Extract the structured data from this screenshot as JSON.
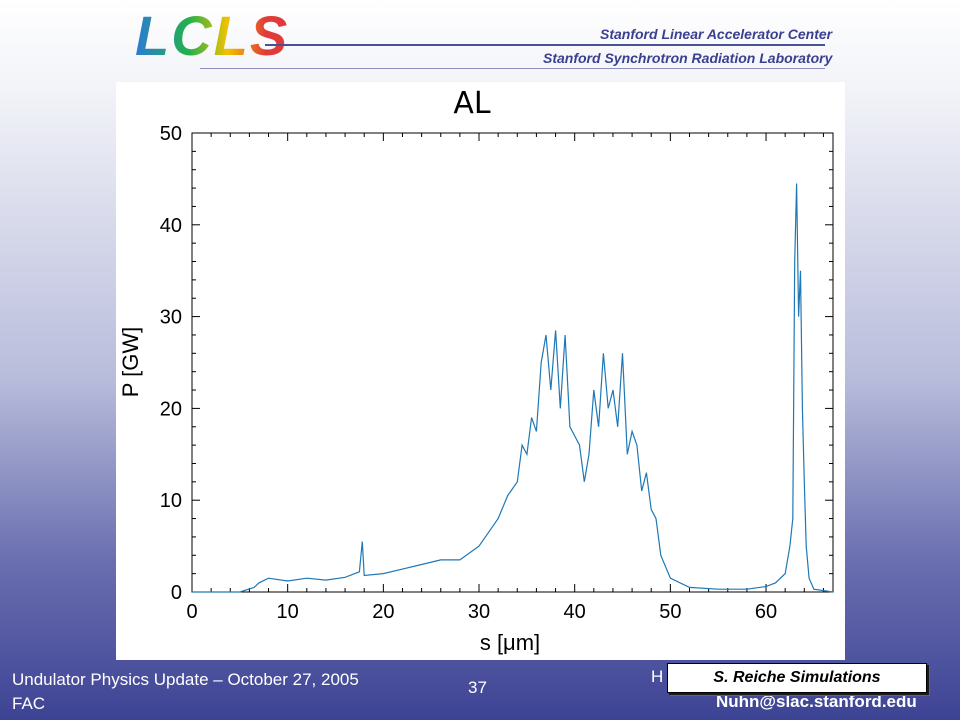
{
  "header": {
    "logo_text": "LCLS",
    "line1": "Stanford Linear Accelerator Center",
    "line2": "Stanford Synchrotron Radiation Laboratory"
  },
  "footer": {
    "left_line1": "Undulator Physics Update – October 27, 2005",
    "left_line2": "FAC",
    "slide_number": "37",
    "author_fragment": "H",
    "email": "Nuhn@slac.stanford.edu",
    "credit": "S. Reiche Simulations"
  },
  "colors": {
    "series": "#1f78b4",
    "footer_text": "#ffffff",
    "header_text": "#3a3f8f"
  },
  "chart_data": {
    "type": "line",
    "title": "AL",
    "xlabel": "s [μm]",
    "ylabel": "P [GW]",
    "xlim": [
      0,
      67
    ],
    "ylim": [
      0,
      50
    ],
    "xticks": [
      0,
      10,
      20,
      30,
      40,
      50,
      60
    ],
    "yticks": [
      0,
      10,
      20,
      30,
      40,
      50
    ],
    "grid": false,
    "series": [
      {
        "x": [
          0,
          5,
          6.5,
          7,
          8,
          10,
          12,
          14,
          16,
          17.5,
          17.8,
          18,
          20,
          22,
          24,
          26,
          28,
          30,
          31,
          32,
          33,
          34,
          34.5,
          35,
          35.5,
          36,
          36.5,
          37,
          37.5,
          38,
          38.5,
          39,
          39.5,
          40,
          40.5,
          41,
          41.5,
          42,
          42.5,
          43,
          43.5,
          44,
          44.5,
          45,
          45.5,
          46,
          46.5,
          47,
          47.5,
          48,
          48.5,
          49,
          50,
          52,
          55,
          58,
          60,
          61,
          62,
          62.5,
          62.8,
          63,
          63.2,
          63.4,
          63.6,
          63.8,
          64,
          64.2,
          64.5,
          65,
          67
        ],
        "y": [
          0,
          0,
          0.5,
          1,
          1.5,
          1.2,
          1.5,
          1.3,
          1.6,
          2.2,
          5.5,
          1.8,
          2.0,
          2.5,
          3.0,
          3.5,
          3.5,
          5.0,
          6.5,
          8.0,
          10.5,
          12.0,
          16.0,
          15.0,
          19.0,
          17.5,
          25.0,
          28.0,
          22.0,
          28.5,
          20.0,
          28.0,
          18.0,
          17.0,
          16.0,
          12.0,
          15.0,
          22.0,
          18.0,
          26.0,
          20.0,
          22.0,
          18.0,
          26.0,
          15.0,
          17.5,
          16.0,
          11.0,
          13.0,
          9.0,
          8.0,
          4.0,
          1.5,
          0.5,
          0.3,
          0.3,
          0.6,
          1.0,
          2.0,
          5.0,
          8.0,
          36.0,
          44.5,
          30.0,
          35.0,
          20.0,
          12.0,
          5.0,
          1.5,
          0.3,
          0
        ]
      }
    ]
  }
}
